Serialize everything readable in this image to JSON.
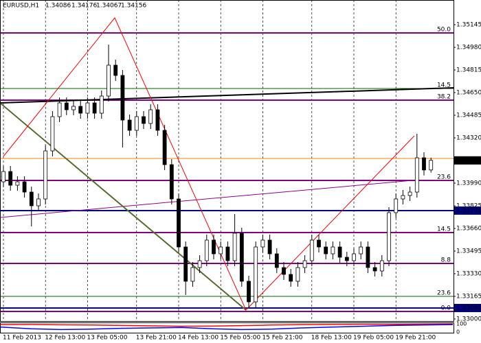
{
  "chart_data": {
    "type": "candlestick",
    "title": "EURUSD,H1",
    "ylim": [
      1.32985,
      1.35325
    ],
    "yticks": [
      1.35145,
      {
        "value": 1.3498,
        "label": "1.34980"
      },
      1.34815,
      {
        "value": 1.3465,
        "label": "1.34650"
      },
      1.34485,
      {
        "value": 1.3432,
        "label": "1.34320"
      },
      {
        "value": 1.3399,
        "label": "1.33990"
      },
      1.33825,
      {
        "value": 1.3366,
        "label": "1.33660"
      },
      1.33495,
      {
        "value": 1.3333,
        "label": "1.33330"
      },
      1.33165,
      {
        "value": 1.33,
        "label": "1.33000"
      }
    ],
    "categories": [
      "11 Feb 2013",
      null,
      null,
      null,
      null,
      null,
      "12 Feb 13:00",
      null,
      null,
      null,
      null,
      null,
      "13 Feb 05:00",
      null,
      null,
      null,
      null,
      null,
      null,
      "13 Feb 21:00",
      null,
      null,
      null,
      null,
      null,
      "14 Feb 13:00",
      null,
      null,
      null,
      null,
      null,
      "15 Feb 05:00",
      null,
      null,
      null,
      null,
      null,
      "15 Feb 21:00",
      null,
      null,
      null,
      null,
      null,
      null,
      "18 Feb 13:00",
      null,
      null,
      null,
      null,
      null,
      "19 Feb 05:00",
      null,
      null,
      null,
      null,
      null,
      "19 Feb 21:00",
      null,
      null,
      null,
      null,
      null
    ],
    "open": [
      1.34,
      1.34075,
      1.33975,
      1.34,
      1.33925,
      1.33825,
      1.33875,
      1.34225,
      1.34475,
      1.34575,
      1.34525,
      1.3455,
      1.345,
      1.34575,
      1.345,
      1.34625,
      1.3485,
      1.34775,
      1.3445,
      1.34375,
      1.34475,
      1.34425,
      1.34525,
      1.34375,
      1.34125,
      1.33875,
      1.33525,
      1.33275,
      1.33375,
      1.33425,
      1.33575,
      1.33475,
      1.33525,
      1.33425,
      1.33625,
      1.33275,
      1.33125,
      1.33525,
      1.33575,
      1.33475,
      1.33375,
      1.33325,
      1.33275,
      1.33375,
      1.33425,
      1.33575,
      1.33525,
      1.33475,
      1.33525,
      1.3345,
      1.33425,
      1.33475,
      1.33525,
      1.33375,
      1.3335,
      1.33425,
      1.33775,
      1.33875,
      1.339,
      1.33925,
      1.34175,
      1.34086
    ],
    "high": [
      1.34115,
      1.34115,
      1.3404,
      1.3404,
      1.33965,
      1.33915,
      1.34265,
      1.34515,
      1.34615,
      1.34615,
      1.3459,
      1.3459,
      1.34615,
      1.34615,
      1.34665,
      1.35,
      1.3489,
      1.34815,
      1.3449,
      1.34515,
      1.34515,
      1.34565,
      1.34565,
      1.34415,
      1.34165,
      1.33915,
      1.33565,
      1.33415,
      1.33465,
      1.33615,
      1.33615,
      1.33565,
      1.33565,
      1.33765,
      1.33665,
      1.33315,
      1.33565,
      1.33615,
      1.33615,
      1.33515,
      1.33415,
      1.33365,
      1.33415,
      1.33465,
      1.33615,
      1.33615,
      1.33565,
      1.33565,
      1.33565,
      1.3349,
      1.33515,
      1.33565,
      1.33565,
      1.33415,
      1.33465,
      1.33815,
      1.33915,
      1.3394,
      1.33965,
      1.3435,
      1.34215,
      1.34176
    ],
    "low": [
      1.3396,
      1.33935,
      1.33935,
      1.33885,
      1.33675,
      1.33785,
      1.33835,
      1.34185,
      1.34435,
      1.34485,
      1.34485,
      1.3446,
      1.3446,
      1.3446,
      1.3446,
      1.34585,
      1.34735,
      1.3425,
      1.34335,
      1.34335,
      1.34385,
      1.34385,
      1.34335,
      1.34085,
      1.33835,
      1.33485,
      1.33175,
      1.33235,
      1.33335,
      1.33385,
      1.33435,
      1.33435,
      1.33385,
      1.33385,
      1.33235,
      1.3308,
      1.33085,
      1.33485,
      1.33435,
      1.33335,
      1.33285,
      1.33235,
      1.33235,
      1.33335,
      1.33385,
      1.33485,
      1.33435,
      1.33435,
      1.3341,
      1.33385,
      1.33385,
      1.33435,
      1.33335,
      1.3331,
      1.3331,
      1.33385,
      1.33735,
      1.33835,
      1.3386,
      1.33885,
      1.34046,
      1.34067
    ],
    "close": [
      1.34075,
      1.33975,
      1.34,
      1.33925,
      1.33825,
      1.33875,
      1.34225,
      1.34475,
      1.34575,
      1.34525,
      1.3455,
      1.345,
      1.34575,
      1.345,
      1.34625,
      1.3485,
      1.34775,
      1.3445,
      1.34375,
      1.34475,
      1.34425,
      1.34525,
      1.34375,
      1.34125,
      1.33875,
      1.33525,
      1.33275,
      1.33375,
      1.33425,
      1.33575,
      1.33475,
      1.33525,
      1.33425,
      1.33625,
      1.33275,
      1.33125,
      1.33525,
      1.33575,
      1.33475,
      1.33375,
      1.33325,
      1.33275,
      1.33375,
      1.33425,
      1.33575,
      1.33525,
      1.33475,
      1.33525,
      1.3345,
      1.33425,
      1.33475,
      1.33525,
      1.33375,
      1.3335,
      1.33425,
      1.33775,
      1.33875,
      1.339,
      1.33925,
      1.34175,
      1.34086,
      1.34156
    ],
    "bull_color": "#ffffff",
    "bear_color": "#000000",
    "levels": [
      {
        "label": "50.0",
        "value": 1.35085,
        "color": "#800080"
      },
      {
        "label": "14.5",
        "value": 1.3468,
        "color": "#006400"
      },
      {
        "label": "38.2",
        "value": 1.34595,
        "color": "#800080"
      },
      {
        "label": "23.6",
        "value": 1.3401,
        "color": "#800080"
      },
      {
        "label": "14.5",
        "value": 1.3363,
        "color": "#800080"
      },
      {
        "label": "8.8",
        "value": 1.33405,
        "color": "#800080"
      },
      {
        "label": "23.6",
        "value": 1.33165,
        "color": "#006400"
      },
      {
        "label": "0.0",
        "value": 1.33055,
        "color": "#800080"
      }
    ],
    "price_lines": [
      {
        "value": 1.3417,
        "color": "#ff8000"
      },
      {
        "value": 1.3379,
        "label": "1.33790",
        "color": "#000080"
      },
      {
        "value": 1.3308,
        "label": "1.33080",
        "color": "#000080"
      }
    ],
    "indicator": {
      "ylim": [
        0,
        100
      ],
      "yticks": [
        100,
        0
      ],
      "series": [
        {
          "color": "#ff0000",
          "values": [
            90,
            92,
            88,
            85,
            80,
            75,
            70,
            72,
            78,
            85,
            90,
            92,
            95,
            93,
            96,
            98
          ]
        },
        {
          "color": "#0000ff",
          "values": [
            60,
            40,
            30,
            35,
            45,
            50,
            55,
            40,
            30,
            35,
            50,
            60,
            70,
            80,
            85,
            90
          ]
        }
      ]
    }
  }
}
